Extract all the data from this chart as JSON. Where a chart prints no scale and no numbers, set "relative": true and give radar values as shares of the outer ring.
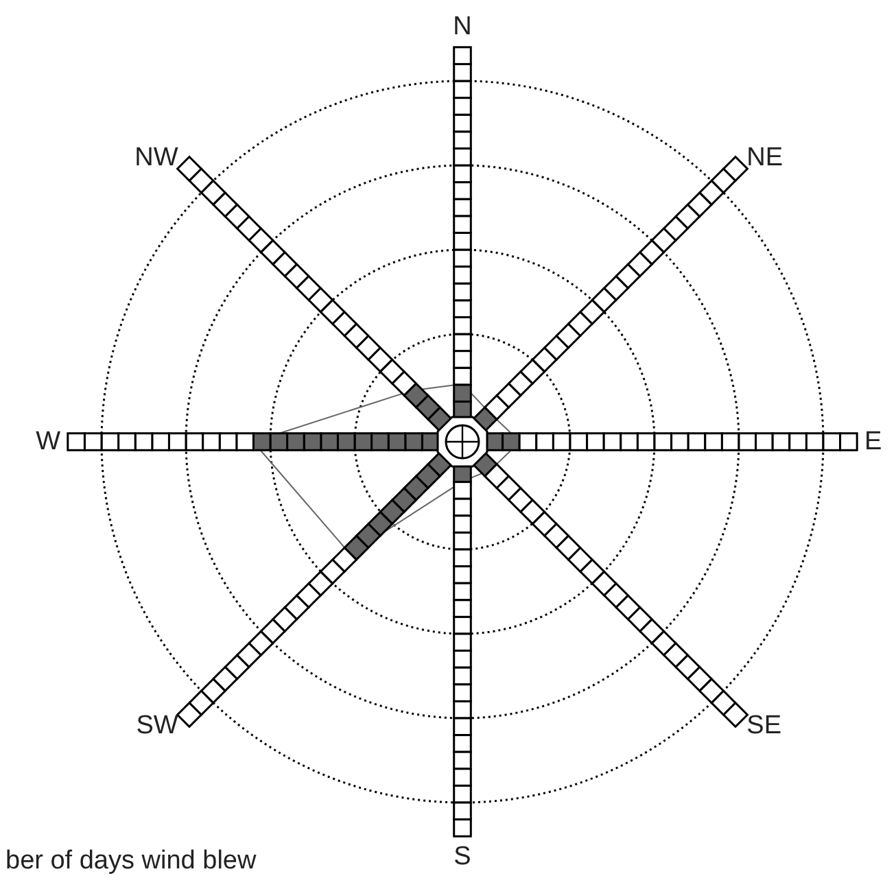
{
  "chart_data": {
    "type": "radar",
    "relative": true,
    "categories": [
      "N",
      "NE",
      "E",
      "SE",
      "S",
      "SW",
      "W",
      "NW"
    ],
    "series": [
      {
        "color": "#666666",
        "values": [
          0.16,
          0.11,
          0.16,
          0.11,
          0.11,
          0.44,
          0.58,
          0.2
        ]
      }
    ],
    "annotations": [
      "ber of days wind blew"
    ]
  }
}
